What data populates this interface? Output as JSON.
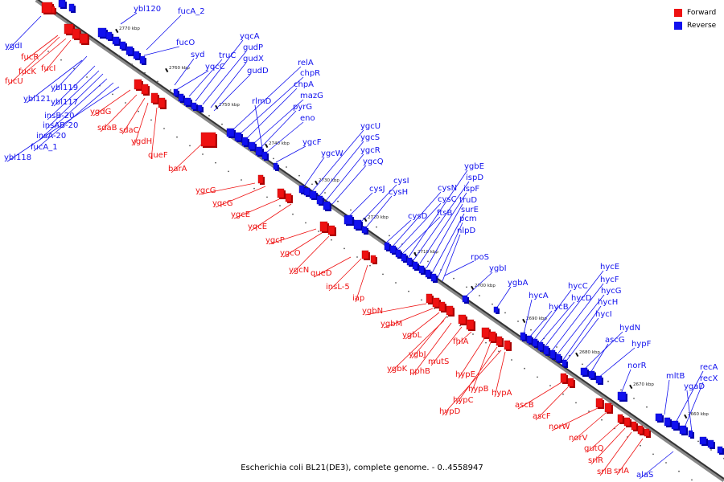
{
  "legend": {
    "forward_label": "Forward",
    "forward_color": "#ee1111",
    "reverse_label": "Reverse",
    "reverse_color": "#1111ee"
  },
  "caption": "Escherichia coli BL21(DE3), complete genome. - 0..4558947",
  "axis_ticks": [
    "2770 kbp",
    "2760 kbp",
    "2750 kbp",
    "2740 kbp",
    "2730 kbp",
    "2720 kbp",
    "2710 kbp",
    "2700 kbp",
    "2690 kbp",
    "2680 kbp",
    "2670 kbp",
    "2660 kbp"
  ],
  "reverse_genes": [
    "ybl120",
    "fucA_2",
    "fucO",
    "syd",
    "yqcC",
    "truC",
    "yqcA",
    "gudP",
    "gudX",
    "gudD",
    "relA",
    "chpR",
    "chpA",
    "rlmD",
    "mazG",
    "pyrG",
    "eno",
    "ygcF",
    "ygcW",
    "ygcU",
    "ygcS",
    "ygcR",
    "ygcQ",
    "cysJ",
    "cysI",
    "cysH",
    "cysD",
    "cysN",
    "cysC",
    "ftsB",
    "ygbE",
    "ispD",
    "ispF",
    "truD",
    "surE",
    "pcm",
    "nlpD",
    "rpoS",
    "ygbI",
    "ygbA",
    "hycA",
    "hycB",
    "hycC",
    "hycD",
    "hycE",
    "hycF",
    "hycG",
    "hycH",
    "hycI",
    "hydN",
    "ascG",
    "hypF",
    "norR",
    "mltB",
    "recA",
    "recX",
    "ygaD",
    "alaS",
    "ygdI",
    "ybl119",
    "ybl121",
    "ybl117",
    "insB-20",
    "insAB-20",
    "insA-20",
    "fucA_1",
    "ybl118"
  ],
  "forward_genes": [
    "fucR",
    "fucK",
    "fucI",
    "fucU",
    "ygdG",
    "sdaB",
    "sdaC",
    "ygdH",
    "queF",
    "barA",
    "ygcG",
    "yqcG",
    "ygcE",
    "yqcE",
    "ygcP",
    "ygcO",
    "ygcN",
    "queD",
    "insL-5",
    "iap",
    "ygbN",
    "ygbM",
    "ygbL",
    "ygbJ",
    "ygbK",
    "pphB",
    "mutS",
    "fhlA",
    "hypE",
    "hypB",
    "hypC",
    "hypD",
    "hypA",
    "ascB",
    "ascF",
    "norW",
    "norV",
    "gutQ",
    "srlR",
    "srlB",
    "srlA"
  ]
}
